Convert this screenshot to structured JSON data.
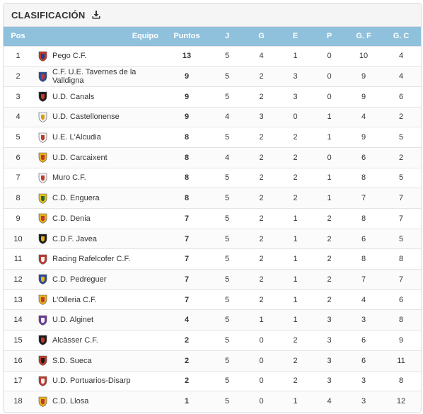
{
  "panel": {
    "title": "CLASIFICACIÓN",
    "download_icon": "download-icon"
  },
  "headers": {
    "pos": "Pos",
    "team": "Equipo",
    "points": "Puntos",
    "j": "J",
    "g": "G",
    "e": "E",
    "p": "P",
    "gf": "G. F",
    "gc": "G. C"
  },
  "rows": [
    {
      "pos": "1",
      "team": "Pego C.F.",
      "pts": "13",
      "j": "5",
      "g": "4",
      "e": "1",
      "p": "0",
      "gf": "10",
      "gc": "4",
      "crest": {
        "a": "#c0392b",
        "b": "#1f3f8f"
      }
    },
    {
      "pos": "2",
      "team": "C.F. U.E. Tavernes de la Valldigna",
      "pts": "9",
      "j": "5",
      "g": "2",
      "e": "3",
      "p": "0",
      "gf": "9",
      "gc": "4",
      "crest": {
        "a": "#2a4a9a",
        "b": "#c0392b"
      }
    },
    {
      "pos": "3",
      "team": "U.D. Canals",
      "pts": "9",
      "j": "5",
      "g": "2",
      "e": "3",
      "p": "0",
      "gf": "9",
      "gc": "6",
      "crest": {
        "a": "#1a1a1a",
        "b": "#c0392b"
      }
    },
    {
      "pos": "4",
      "team": "U.D. Castellonense",
      "pts": "9",
      "j": "4",
      "g": "3",
      "e": "0",
      "p": "1",
      "gf": "4",
      "gc": "2",
      "crest": {
        "a": "#f2f2f2",
        "b": "#d4a017"
      }
    },
    {
      "pos": "5",
      "team": "U.E. L'Alcudia",
      "pts": "8",
      "j": "5",
      "g": "2",
      "e": "2",
      "p": "1",
      "gf": "9",
      "gc": "5",
      "crest": {
        "a": "#f2f2f2",
        "b": "#c0392b"
      }
    },
    {
      "pos": "6",
      "team": "U.D. Carcaixent",
      "pts": "8",
      "j": "4",
      "g": "2",
      "e": "2",
      "p": "0",
      "gf": "6",
      "gc": "2",
      "crest": {
        "a": "#e8b21a",
        "b": "#c0392b"
      }
    },
    {
      "pos": "7",
      "team": "Muro C.F.",
      "pts": "8",
      "j": "5",
      "g": "2",
      "e": "2",
      "p": "1",
      "gf": "8",
      "gc": "5",
      "crest": {
        "a": "#f2f2f2",
        "b": "#c0392b"
      }
    },
    {
      "pos": "8",
      "team": "C.D. Enguera",
      "pts": "8",
      "j": "5",
      "g": "2",
      "e": "2",
      "p": "1",
      "gf": "7",
      "gc": "7",
      "crest": {
        "a": "#e8c21a",
        "b": "#2a6a2a"
      }
    },
    {
      "pos": "9",
      "team": "C.D. Denia",
      "pts": "7",
      "j": "5",
      "g": "2",
      "e": "1",
      "p": "2",
      "gf": "8",
      "gc": "7",
      "crest": {
        "a": "#e8b21a",
        "b": "#c0392b"
      }
    },
    {
      "pos": "10",
      "team": "C.D.F. Javea",
      "pts": "7",
      "j": "5",
      "g": "2",
      "e": "1",
      "p": "2",
      "gf": "6",
      "gc": "5",
      "crest": {
        "a": "#1a1a1a",
        "b": "#e8b21a"
      }
    },
    {
      "pos": "11",
      "team": "Racing Rafelcofer C.F.",
      "pts": "7",
      "j": "5",
      "g": "2",
      "e": "1",
      "p": "2",
      "gf": "8",
      "gc": "8",
      "crest": {
        "a": "#c0392b",
        "b": "#f2f2f2"
      }
    },
    {
      "pos": "12",
      "team": "C.D. Pedreguer",
      "pts": "7",
      "j": "5",
      "g": "2",
      "e": "1",
      "p": "2",
      "gf": "7",
      "gc": "7",
      "crest": {
        "a": "#2a4a9a",
        "b": "#e8b21a"
      }
    },
    {
      "pos": "13",
      "team": "L'Olleria C.F.",
      "pts": "7",
      "j": "5",
      "g": "2",
      "e": "1",
      "p": "2",
      "gf": "4",
      "gc": "6",
      "crest": {
        "a": "#e8b21a",
        "b": "#c0392b"
      }
    },
    {
      "pos": "14",
      "team": "U.D. Alginet",
      "pts": "4",
      "j": "5",
      "g": "1",
      "e": "1",
      "p": "3",
      "gf": "3",
      "gc": "8",
      "crest": {
        "a": "#6a3a9a",
        "b": "#f2f2f2"
      }
    },
    {
      "pos": "15",
      "team": "Alcàsser C.F.",
      "pts": "2",
      "j": "5",
      "g": "0",
      "e": "2",
      "p": "3",
      "gf": "6",
      "gc": "9",
      "crest": {
        "a": "#1a1a1a",
        "b": "#c0392b"
      }
    },
    {
      "pos": "16",
      "team": "S.D. Sueca",
      "pts": "2",
      "j": "5",
      "g": "0",
      "e": "2",
      "p": "3",
      "gf": "6",
      "gc": "11",
      "crest": {
        "a": "#c0392b",
        "b": "#1a1a1a"
      }
    },
    {
      "pos": "17",
      "team": "U.D. Portuarios-Disarp",
      "pts": "2",
      "j": "5",
      "g": "0",
      "e": "2",
      "p": "3",
      "gf": "3",
      "gc": "8",
      "crest": {
        "a": "#c0392b",
        "b": "#f2f2f2"
      }
    },
    {
      "pos": "18",
      "team": "C.D. Llosa",
      "pts": "1",
      "j": "5",
      "g": "0",
      "e": "1",
      "p": "4",
      "gf": "3",
      "gc": "12",
      "crest": {
        "a": "#e8b21a",
        "b": "#c0392b"
      }
    }
  ]
}
